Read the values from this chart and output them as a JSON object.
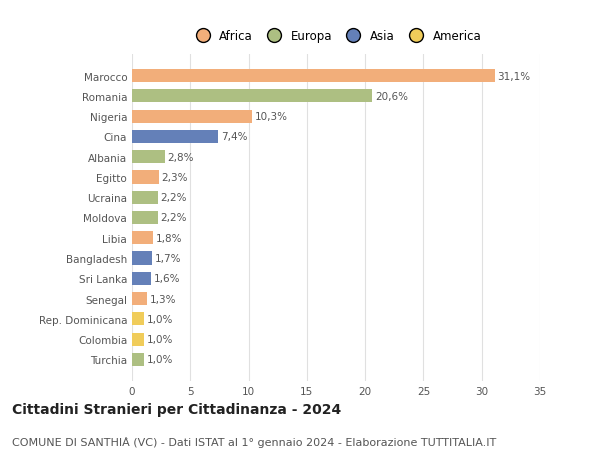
{
  "categories": [
    "Marocco",
    "Romania",
    "Nigeria",
    "Cina",
    "Albania",
    "Egitto",
    "Ucraina",
    "Moldova",
    "Libia",
    "Bangladesh",
    "Sri Lanka",
    "Senegal",
    "Rep. Dominicana",
    "Colombia",
    "Turchia"
  ],
  "values": [
    31.1,
    20.6,
    10.3,
    7.4,
    2.8,
    2.3,
    2.2,
    2.2,
    1.8,
    1.7,
    1.6,
    1.3,
    1.0,
    1.0,
    1.0
  ],
  "labels": [
    "31,1%",
    "20,6%",
    "10,3%",
    "7,4%",
    "2,8%",
    "2,3%",
    "2,2%",
    "2,2%",
    "1,8%",
    "1,7%",
    "1,6%",
    "1,3%",
    "1,0%",
    "1,0%",
    "1,0%"
  ],
  "continents": [
    "Africa",
    "Europa",
    "Africa",
    "Asia",
    "Europa",
    "Africa",
    "Europa",
    "Europa",
    "Africa",
    "Asia",
    "Asia",
    "Africa",
    "America",
    "America",
    "Europa"
  ],
  "continent_colors": {
    "Africa": "#F2AE7A",
    "Europa": "#ADBF82",
    "Asia": "#6480B8",
    "America": "#F0CC5A"
  },
  "legend_order": [
    "Africa",
    "Europa",
    "Asia",
    "America"
  ],
  "xlim": [
    0,
    35
  ],
  "xticks": [
    0,
    5,
    10,
    15,
    20,
    25,
    30,
    35
  ],
  "title": "Cittadini Stranieri per Cittadinanza - 2024",
  "subtitle": "COMUNE DI SANTHIÀ (VC) - Dati ISTAT al 1° gennaio 2024 - Elaborazione TUTTITALIA.IT",
  "title_fontsize": 10,
  "subtitle_fontsize": 8,
  "background_color": "#ffffff",
  "grid_color": "#e0e0e0",
  "bar_height": 0.65,
  "label_fontsize": 7.5,
  "tick_fontsize": 7.5,
  "legend_fontsize": 8.5
}
